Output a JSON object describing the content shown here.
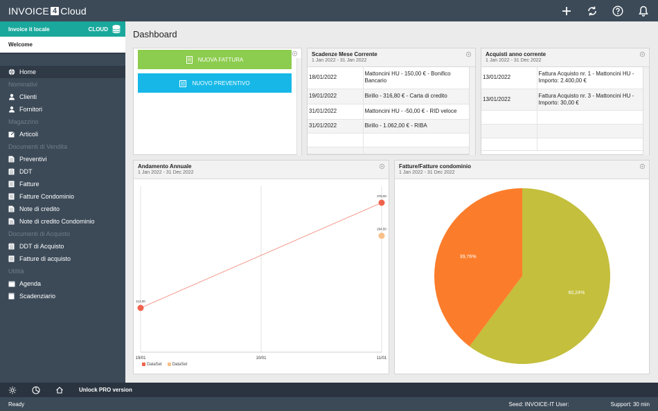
{
  "app": {
    "logo_left": "INVOICE",
    "logo_mid": "4",
    "logo_right": "Cloud"
  },
  "topbar_icons": [
    "plus-icon",
    "sync-icon",
    "help-icon",
    "bell-icon"
  ],
  "sidebar": {
    "account_name": "Invoice it locale",
    "account_badge": "CLOUD",
    "welcome": "Welcome",
    "nav": [
      {
        "type": "item",
        "label": "Home",
        "icon": "globe-icon",
        "active": true
      },
      {
        "type": "section",
        "label": "Nominativi"
      },
      {
        "type": "item",
        "label": "Clienti",
        "icon": "person-icon"
      },
      {
        "type": "item",
        "label": "Fornitori",
        "icon": "person-icon"
      },
      {
        "type": "section",
        "label": "Magazzino"
      },
      {
        "type": "item",
        "label": "Articoli",
        "icon": "edit-icon"
      },
      {
        "type": "section",
        "label": "Documenti di Vendita"
      },
      {
        "type": "item",
        "label": "Preventivi",
        "icon": "document-icon"
      },
      {
        "type": "item",
        "label": "DDT",
        "icon": "clipboard-icon"
      },
      {
        "type": "item",
        "label": "Fatture",
        "icon": "invoice-icon"
      },
      {
        "type": "item",
        "label": "Fatture Condominio",
        "icon": "invoice-icon"
      },
      {
        "type": "item",
        "label": "Note di credito",
        "icon": "document-icon"
      },
      {
        "type": "item",
        "label": "Note di credito Condominio",
        "icon": "document-icon"
      },
      {
        "type": "section",
        "label": "Documenti di Acquisto"
      },
      {
        "type": "item",
        "label": "DDT di Acquisto",
        "icon": "clipboard-icon"
      },
      {
        "type": "item",
        "label": "Fatture di acquisto",
        "icon": "invoice-icon"
      },
      {
        "type": "section",
        "label": "Utilità"
      },
      {
        "type": "item",
        "label": "Agenda",
        "icon": "calendar-icon"
      },
      {
        "type": "item",
        "label": "Scadenziario",
        "icon": "schedule-icon"
      }
    ]
  },
  "bottom_toolbar": {
    "icons": [
      "settings-icon",
      "palette-icon",
      "home-icon"
    ],
    "unlock": "Unlock PRO version"
  },
  "status": {
    "ready": "Ready",
    "seed": "Seed: INVOICE-IT   User:",
    "support": "Support: 30 min"
  },
  "main": {
    "title": "Dashboard",
    "buttons": {
      "new_invoice": "NUOVA FATTURA",
      "new_quote": "NUOVO PREVENTIVO"
    },
    "scadenze": {
      "title": "Scadenze Mese Corrente",
      "subtitle": "1 Jan 2022 - 31 Jan 2022",
      "rows": [
        {
          "date": "18/01/2022",
          "desc": "Mattoncini HU - 150,00 € - Bonifico Bancario"
        },
        {
          "date": "19/01/2022",
          "desc": "Birillo - 316,80 € - Carta di credito"
        },
        {
          "date": "31/01/2022",
          "desc": "Mattoncini HU - -50,00 € - RID veloce"
        },
        {
          "date": "31/01/2022",
          "desc": "Birillo - 1.062,00 € - RIBA"
        },
        {
          "date": "",
          "desc": ""
        },
        {
          "date": "",
          "desc": ""
        }
      ]
    },
    "acquisti": {
      "title": "Acquisti anno corrente",
      "subtitle": "1 Jan 2022 - 31 Dec 2022",
      "rows": [
        {
          "date": "13/01/2022",
          "desc": "Fattura Acquisto nr. 1 - Mattoncini HU - Importo: 2.400,00 €"
        },
        {
          "date": "13/01/2022",
          "desc": "Fattura Acquisto nr. 3 - Mattoncini HU - Importo: 30,00 €"
        },
        {
          "date": "",
          "desc": ""
        },
        {
          "date": "",
          "desc": ""
        },
        {
          "date": "",
          "desc": ""
        }
      ]
    },
    "andamento": {
      "title": "Andamento Annuale",
      "subtitle": "1 Jan 2022 - 31 Dec 2022",
      "x_labels": [
        "19/01",
        "10/01",
        "11/01"
      ],
      "point_labels": [
        "112,00",
        "378,00",
        "294,50"
      ]
    },
    "fatture_pie": {
      "title": "Fatture/Fatture condominio",
      "subtitle": "1 Jan 2022 - 31 Dec 2022"
    }
  },
  "chart_data": [
    {
      "type": "line",
      "title": "Andamento Annuale",
      "categories": [
        "19/01",
        "10/01",
        "11/01"
      ],
      "series": [
        {
          "name": "DataSet",
          "color": "#f0624d",
          "points": [
            {
              "x": "19/01",
              "y": 112.0
            },
            {
              "x": "11/01",
              "y": 378.0
            }
          ]
        },
        {
          "name": "DataSet",
          "color": "#f7c08a",
          "points": [
            {
              "x": "11/01",
              "y": 294.5
            }
          ]
        }
      ],
      "legend": "bottom-left",
      "grid": true
    },
    {
      "type": "pie",
      "title": "Fatture/Fatture condominio",
      "slices": [
        {
          "label": "60,24%",
          "value": 60.24,
          "color": "#c4bf3c"
        },
        {
          "label": "39,76%",
          "value": 39.76,
          "color": "#fb7d2b"
        }
      ]
    }
  ]
}
